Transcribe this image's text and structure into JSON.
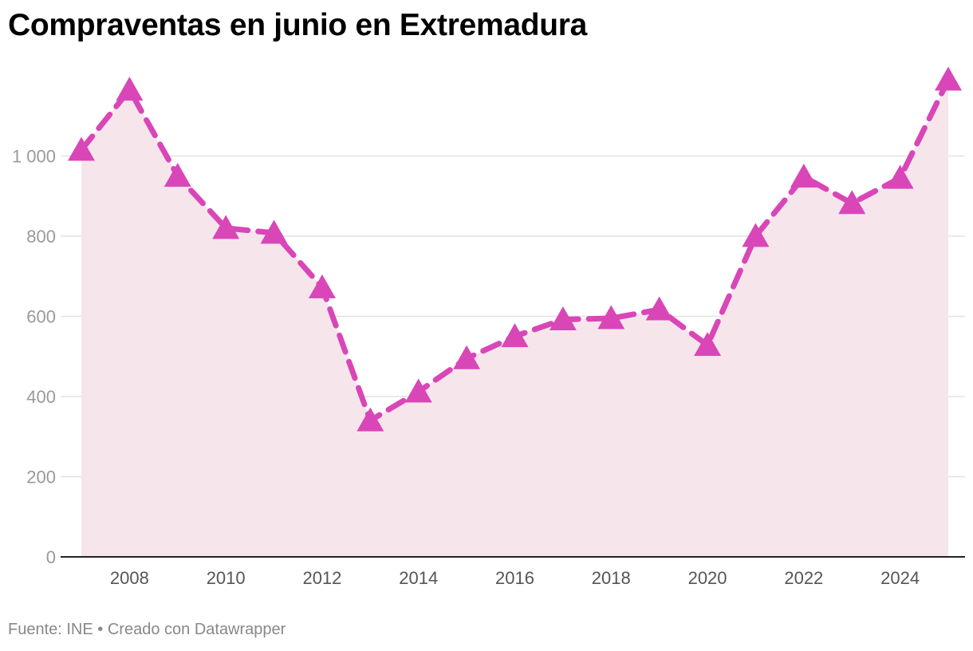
{
  "title": "Compraventas en junio en Extremadura",
  "footer": {
    "source": "Fuente: INE",
    "separator": "•",
    "credit": "Creado con Datawrapper"
  },
  "colors": {
    "line": "#d946b8",
    "area": "#f6e6ec",
    "grid": "#e2e2e2",
    "axis": "#222222",
    "ytick": "#9a9a9a",
    "xtick": "#555555"
  },
  "chart_data": {
    "type": "line",
    "title": "Compraventas en junio en Extremadura",
    "xlabel": "",
    "ylabel": "",
    "x": [
      2007,
      2008,
      2009,
      2010,
      2011,
      2012,
      2013,
      2014,
      2015,
      2016,
      2017,
      2018,
      2019,
      2020,
      2021,
      2022,
      2023,
      2024,
      2025
    ],
    "series": [
      {
        "name": "Compraventas",
        "values": [
          1015,
          1165,
          950,
          820,
          808,
          672,
          340,
          412,
          495,
          550,
          592,
          595,
          617,
          528,
          800,
          948,
          882,
          945,
          1190
        ],
        "marker": "triangle",
        "line_style": "dashed",
        "area_fill": true
      }
    ],
    "ylim": [
      0,
      1200
    ],
    "xlim": [
      2007,
      2025
    ],
    "yticks": [
      0,
      200,
      400,
      600,
      800,
      1000
    ],
    "ytick_labels": [
      "0",
      "200",
      "400",
      "600",
      "800",
      "1 000"
    ],
    "xticks": [
      2008,
      2010,
      2012,
      2014,
      2016,
      2018,
      2020,
      2022,
      2024
    ],
    "xtick_labels": [
      "2008",
      "2010",
      "2012",
      "2014",
      "2016",
      "2018",
      "2020",
      "2022",
      "2024"
    ],
    "grid": true,
    "legend": "none"
  }
}
